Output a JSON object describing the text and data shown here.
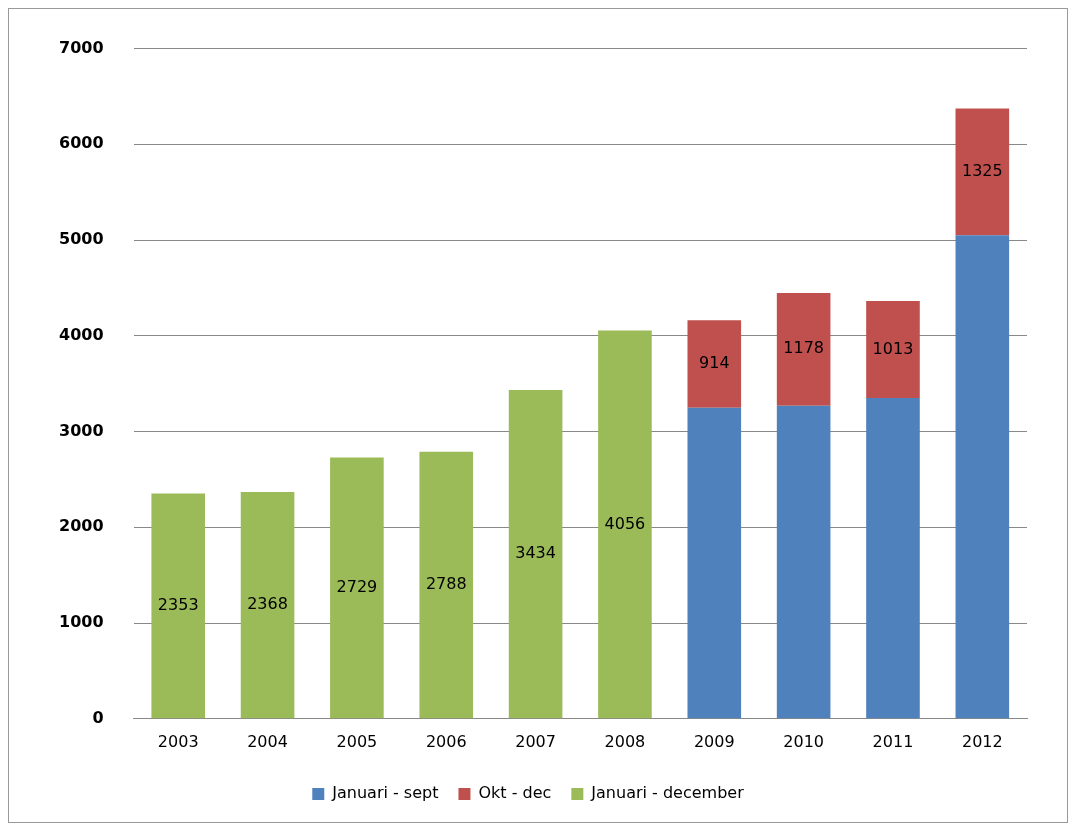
{
  "chart_data": {
    "type": "bar",
    "stacked": true,
    "categories": [
      "2003",
      "2004",
      "2005",
      "2006",
      "2007",
      "2008",
      "2009",
      "2010",
      "2011",
      "2012"
    ],
    "series": [
      {
        "name": "Januari - sept",
        "color": "#4f81bd",
        "values": [
          null,
          null,
          null,
          null,
          null,
          null,
          3250,
          3270,
          3350,
          5050
        ]
      },
      {
        "name": "Okt - dec",
        "color": "#c0504d",
        "values": [
          null,
          null,
          null,
          null,
          null,
          null,
          914,
          1178,
          1013,
          1325
        ],
        "value_labels": [
          null,
          null,
          null,
          null,
          null,
          null,
          "914",
          "1178",
          "1013",
          "1325"
        ]
      },
      {
        "name": "Januari - december",
        "color": "#9bbb59",
        "values": [
          2353,
          2368,
          2729,
          2788,
          3434,
          4056,
          null,
          null,
          null,
          null
        ],
        "value_labels": [
          "2353",
          "2368",
          "2729",
          "2788",
          "3434",
          "4056",
          null,
          null,
          null,
          null
        ]
      }
    ],
    "ylim": [
      0,
      7000
    ],
    "yticks": [
      0,
      1000,
      2000,
      3000,
      4000,
      5000,
      6000,
      7000
    ],
    "grid": "y",
    "legend": "bottom"
  }
}
